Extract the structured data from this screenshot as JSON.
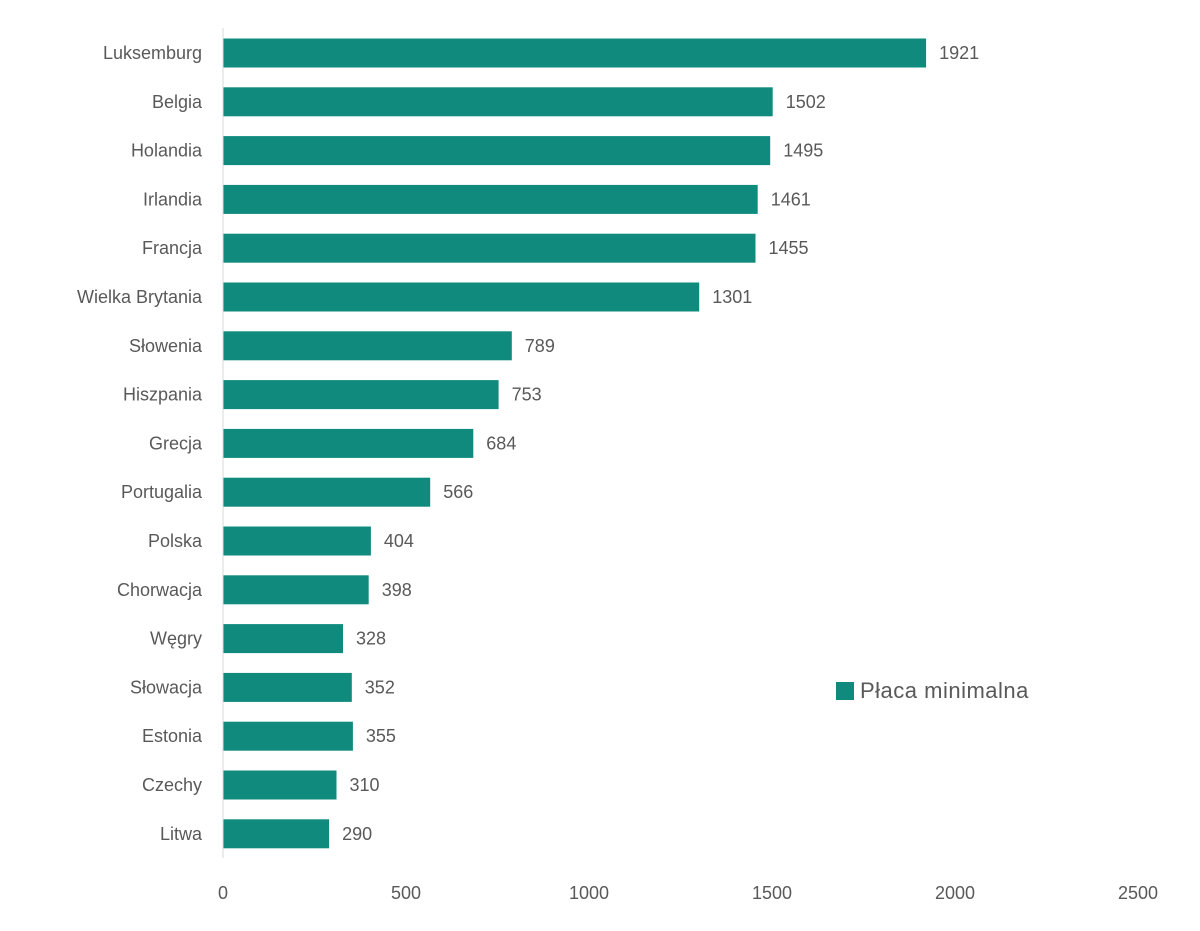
{
  "colors": {
    "bar": "#108a7d",
    "axis": "#d9d9d9",
    "text": "#595959"
  },
  "legend": {
    "label": "Płaca minimalna"
  },
  "chart_data": {
    "type": "bar",
    "orientation": "horizontal",
    "categories": [
      "Luksemburg",
      "Belgia",
      "Holandia",
      "Irlandia",
      "Francja",
      "Wielka Brytania",
      "Słowenia",
      "Hiszpania",
      "Grecja",
      "Portugalia",
      "Polska",
      "Chorwacja",
      "Węgry",
      "Słowacja",
      "Estonia",
      "Czechy",
      "Litwa"
    ],
    "series": [
      {
        "name": "Płaca minimalna",
        "values": [
          1921,
          1502,
          1495,
          1461,
          1455,
          1301,
          789,
          753,
          684,
          566,
          404,
          398,
          328,
          352,
          355,
          310,
          290
        ]
      }
    ],
    "xlim": [
      0,
      2500
    ],
    "xticks": [
      "0",
      "500",
      "1000",
      "1500",
      "2000",
      "2500"
    ],
    "data_labels": true,
    "grid": false,
    "legend_position": "right",
    "title": "",
    "xlabel": "",
    "ylabel": ""
  }
}
